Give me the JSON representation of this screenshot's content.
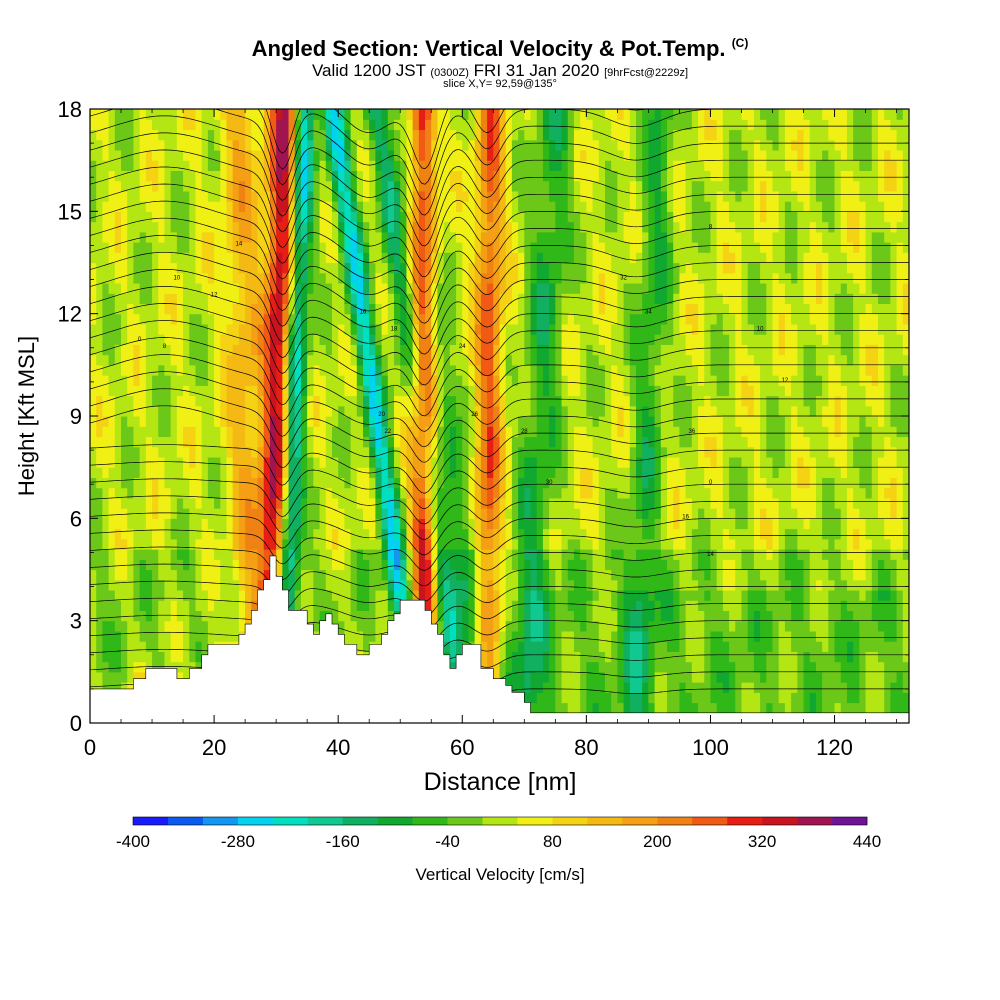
{
  "header": {
    "title": "Angled Section: Vertical Velocity & Pot.Temp.",
    "title_mark": "(C)",
    "valid_a": "Valid 1200 JST",
    "valid_b": "(0300Z)",
    "valid_c": "FRI 31 Jan 2020",
    "valid_d": "[9hrFcst@2229z]",
    "slice": "slice X,Y= 92,59@135°"
  },
  "chart_data": {
    "type": "heatmap",
    "xlabel": "Distance [nm]",
    "ylabel": "Height [Kft MSL]",
    "xlim": [
      0,
      132
    ],
    "ylim": [
      0,
      18
    ],
    "x_ticks": [
      "0",
      "20",
      "40",
      "60",
      "80",
      "100",
      "120"
    ],
    "y_ticks": [
      "0",
      "3",
      "6",
      "9",
      "12",
      "15",
      "18"
    ],
    "colorbar": {
      "label": "Vertical Velocity [cm/s]",
      "tick_labels": [
        "-400",
        "-280",
        "-160",
        "-40",
        "80",
        "200",
        "320",
        "440"
      ],
      "levels": [
        -400,
        -360,
        -320,
        -280,
        -240,
        -200,
        -160,
        -120,
        -80,
        -40,
        0,
        40,
        80,
        120,
        160,
        200,
        240,
        280,
        320,
        360,
        400,
        440
      ],
      "colors": [
        "#1a1aff",
        "#0a5af0",
        "#1296f0",
        "#00d2f0",
        "#00e0c0",
        "#10c890",
        "#10b060",
        "#10a830",
        "#30b818",
        "#6cc818",
        "#b4e614",
        "#f0f014",
        "#f5d214",
        "#f5b914",
        "#f5a014",
        "#f08214",
        "#f05a14",
        "#e61e14",
        "#c8141e",
        "#a01450",
        "#6e1496"
      ]
    },
    "updraft_bands": [
      {
        "x_base": 29,
        "x_top": 31.5,
        "w": 2.4,
        "peak": 340
      },
      {
        "x_base": 54,
        "x_top": 53.5,
        "w": 2.2,
        "peak": 320
      },
      {
        "x_base": 64,
        "x_top": 64.5,
        "w": 2.2,
        "peak": 220
      },
      {
        "x_base": 26,
        "x_top": 24,
        "w": 3,
        "peak": 120
      }
    ],
    "downdraft_bands": [
      {
        "x_base": 31,
        "x_top": 34.5,
        "w": 1.8,
        "peak": -300
      },
      {
        "x_base": 53,
        "x_top": 39,
        "w": 1.8,
        "peak": -260
      },
      {
        "x_base": 60,
        "x_top": 46,
        "w": 2,
        "peak": -170
      },
      {
        "x_base": 64,
        "x_top": 51,
        "w": 2,
        "peak": -140
      },
      {
        "x_base": 70,
        "x_top": 75,
        "w": 3,
        "peak": -120
      },
      {
        "x_base": 88,
        "x_top": 92,
        "w": 2.5,
        "peak": -110
      }
    ],
    "terrain_kft": [
      [
        0,
        1
      ],
      [
        5,
        1
      ],
      [
        7,
        1.3
      ],
      [
        9,
        1.6
      ],
      [
        13,
        1.6
      ],
      [
        14,
        1.3
      ],
      [
        16,
        1.6
      ],
      [
        18,
        2
      ],
      [
        19,
        2.3
      ],
      [
        23,
        2.3
      ],
      [
        24,
        2.6
      ],
      [
        25,
        2.9
      ],
      [
        26,
        3.3
      ],
      [
        27,
        3.9
      ],
      [
        28,
        4.2
      ],
      [
        29,
        4.9
      ],
      [
        30,
        4.3
      ],
      [
        31,
        3.9
      ],
      [
        32,
        3.3
      ],
      [
        34,
        3.3
      ],
      [
        35,
        2.9
      ],
      [
        36,
        2.6
      ],
      [
        37,
        3
      ],
      [
        38,
        3.2
      ],
      [
        39,
        2.9
      ],
      [
        40,
        2.6
      ],
      [
        41,
        2.3
      ],
      [
        43,
        2
      ],
      [
        45,
        2.3
      ],
      [
        47,
        2.6
      ],
      [
        48,
        3
      ],
      [
        49,
        3.2
      ],
      [
        50,
        3.6
      ],
      [
        53,
        3.6
      ],
      [
        54,
        3.3
      ],
      [
        55,
        2.9
      ],
      [
        56,
        2.6
      ],
      [
        57,
        2
      ],
      [
        58,
        1.6
      ],
      [
        59,
        2
      ],
      [
        60,
        2.3
      ],
      [
        62,
        2.3
      ],
      [
        63,
        1.6
      ],
      [
        65,
        1.3
      ],
      [
        66,
        1.3
      ],
      [
        67,
        1.1
      ],
      [
        68,
        0.9
      ],
      [
        70,
        0.6
      ],
      [
        71,
        0.3
      ],
      [
        132,
        0.3
      ]
    ],
    "contour_labels": [
      "0",
      "8",
      "10",
      "12",
      "14",
      "16",
      "18",
      "20",
      "22",
      "24",
      "26",
      "28",
      "30",
      "32",
      "34",
      "36"
    ]
  }
}
